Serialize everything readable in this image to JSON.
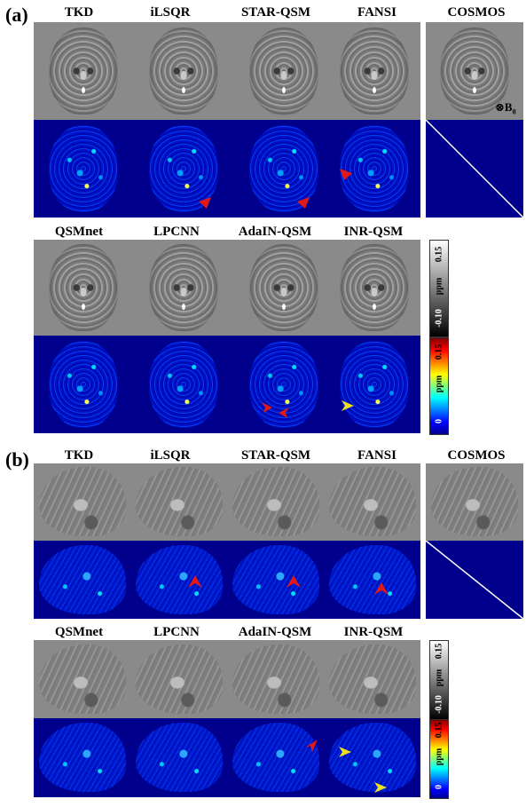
{
  "panels": [
    {
      "tag": "(a)",
      "row1_methods": [
        "TKD",
        "iLSQR",
        "STAR-QSM",
        "FANSI",
        "COSMOS"
      ],
      "row2_methods": [
        "QSMnet",
        "LPCNN",
        "AdaIN-QSM",
        "INR-QSM"
      ]
    },
    {
      "tag": "(b)",
      "row1_methods": [
        "TKD",
        "iLSQR",
        "STAR-QSM",
        "FANSI",
        "COSMOS"
      ],
      "row2_methods": [
        "QSMnet",
        "LPCNN",
        "AdaIN-QSM",
        "INR-QSM"
      ]
    }
  ],
  "field_label": "⊗B",
  "field_label_sub": "0",
  "colorbars": {
    "gray": {
      "max": "0.15",
      "unit": "ppm",
      "min": "-0.10"
    },
    "error": {
      "max": "0.15",
      "unit": "ppm",
      "min": "0"
    }
  },
  "colors": {
    "error_background": "#00008c",
    "red_arrow": "#e01818",
    "yellow_arrow": "#f0e020"
  }
}
